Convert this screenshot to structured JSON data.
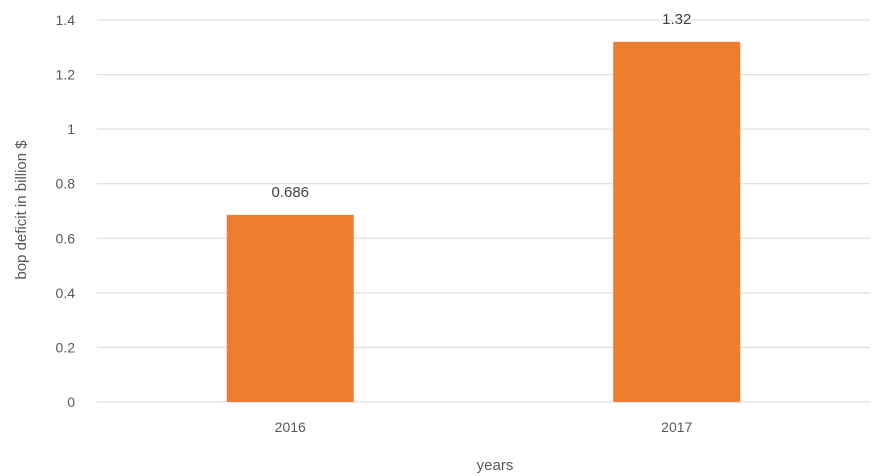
{
  "chart_data": {
    "type": "bar",
    "categories": [
      "2016",
      "2017"
    ],
    "values": [
      0.686,
      1.32
    ],
    "data_labels": [
      "0.686",
      "1.32"
    ],
    "title": "",
    "xlabel": "years",
    "ylabel": "bop deficit in billion $",
    "ylim": [
      0,
      1.4
    ],
    "y_ticks": [
      0,
      0.2,
      0.4,
      0.6,
      0.8,
      1,
      1.2,
      1.4
    ],
    "y_tick_labels": [
      "0",
      "0.2",
      "0.4",
      "0.6",
      "0.8",
      "1",
      "1.2",
      "1.4"
    ],
    "grid": true,
    "legend": "none",
    "colors": {
      "bar": "#ED7D31",
      "grid": "#D9D9D9",
      "text": "#595959"
    }
  }
}
